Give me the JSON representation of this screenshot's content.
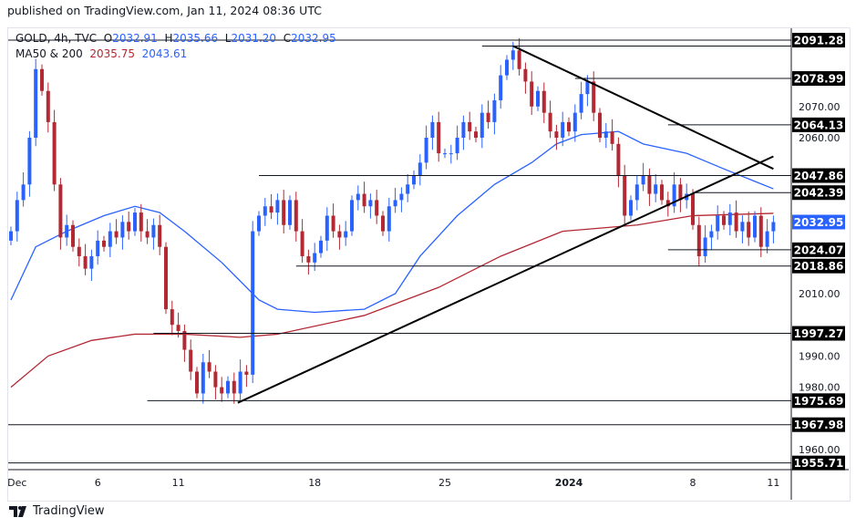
{
  "header": {
    "published": "published on TradingView.com, Jan 11, 2024 08:36 UTC"
  },
  "legend": {
    "symbol": "GOLD, 4h, TVC",
    "o_label": "O",
    "o": "2032.91",
    "h_label": "H",
    "h": "2035.66",
    "l_label": "L",
    "l": "2031.20",
    "c_label": "C",
    "c": "2032.95",
    "ma_label": "MA50 & 200",
    "ma200": "2035.75",
    "ma50": "2043.61"
  },
  "footer": {
    "brand": "TradingView"
  },
  "colors": {
    "up": "#2962ff",
    "down": "#b22833",
    "ma50": "#2962ff",
    "ma200": "#b22833",
    "label_bg": "#000000",
    "last_price_bg": "#2962ff"
  },
  "chart_data": {
    "type": "candlestick",
    "title": "GOLD, 4h, TVC",
    "ylim": [
      1953,
      2097
    ],
    "y_ticks": [
      "2070.00",
      "2060.00",
      "2010.00",
      "1990.00",
      "1980.00",
      "1960.00"
    ],
    "x_ticks": [
      {
        "label": "Dec",
        "i": 1
      },
      {
        "label": "6",
        "i": 14
      },
      {
        "label": "11",
        "i": 27
      },
      {
        "label": "18",
        "i": 49
      },
      {
        "label": "25",
        "i": 70
      },
      {
        "label": "2024",
        "i": 90
      },
      {
        "label": "8",
        "i": 110
      },
      {
        "label": "11",
        "i": 123
      }
    ],
    "closes": [
      2030,
      2040,
      2045,
      2060,
      2082,
      2075,
      2065,
      2045,
      2028,
      2032,
      2025,
      2022,
      2018,
      2022,
      2027,
      2025,
      2030,
      2028,
      2033,
      2030,
      2036,
      2030,
      2028,
      2032,
      2025,
      2005,
      2000,
      1998,
      1992,
      1985,
      1978,
      1988,
      1985,
      1980,
      1978,
      1982,
      1978,
      1985,
      1984,
      2030,
      2035,
      2038,
      2036,
      2040,
      2032,
      2040,
      2030,
      2022,
      2020,
      2023,
      2027,
      2035,
      2030,
      2028,
      2030,
      2040,
      2042,
      2038,
      2040,
      2035,
      2030,
      2038,
      2040,
      2042,
      2045,
      2048,
      2052,
      2060,
      2065,
      2055,
      2055,
      2055,
      2060,
      2065,
      2062,
      2060,
      2068,
      2065,
      2072,
      2080,
      2085,
      2088,
      2082,
      2078,
      2070,
      2075,
      2068,
      2062,
      2060,
      2065,
      2062,
      2068,
      2074,
      2078,
      2068,
      2060,
      2062,
      2058,
      2048,
      2035,
      2040,
      2045,
      2048,
      2042,
      2045,
      2040,
      2038,
      2045,
      2040,
      2042,
      2032,
      2022,
      2028,
      2030,
      2035,
      2032,
      2036,
      2030,
      2033,
      2028,
      2035,
      2025,
      2030,
      2032.95
    ],
    "ma50": [
      [
        0,
        2008
      ],
      [
        4,
        2025
      ],
      [
        9,
        2030
      ],
      [
        15,
        2035
      ],
      [
        20,
        2038
      ],
      [
        24,
        2036
      ],
      [
        28,
        2030
      ],
      [
        34,
        2020
      ],
      [
        40,
        2008
      ],
      [
        43,
        2005
      ],
      [
        49,
        2004
      ],
      [
        57,
        2005
      ],
      [
        62,
        2010
      ],
      [
        66,
        2022
      ],
      [
        72,
        2035
      ],
      [
        78,
        2045
      ],
      [
        84,
        2052
      ],
      [
        88,
        2058
      ],
      [
        92,
        2061
      ],
      [
        98,
        2062
      ],
      [
        102,
        2058
      ],
      [
        109,
        2055
      ],
      [
        115,
        2050
      ],
      [
        120,
        2046
      ],
      [
        123,
        2043.61
      ]
    ],
    "ma200": [
      [
        0,
        1980
      ],
      [
        6,
        1990
      ],
      [
        13,
        1995
      ],
      [
        20,
        1997
      ],
      [
        28,
        1997
      ],
      [
        37,
        1996
      ],
      [
        43,
        1997
      ],
      [
        57,
        2003
      ],
      [
        69,
        2012
      ],
      [
        79,
        2022
      ],
      [
        89,
        2030
      ],
      [
        101,
        2032
      ],
      [
        110,
        2035
      ],
      [
        123,
        2035.75
      ]
    ],
    "trendlines": [
      {
        "from": [
          36.6,
          1975
        ],
        "to": [
          123,
          2054
        ]
      },
      {
        "from": [
          81,
          2089.4
        ],
        "to": [
          123,
          2050
        ]
      }
    ],
    "levels": [
      {
        "price": "2091.28",
        "from": -2
      },
      {
        "price": "2089.38",
        "from": 76
      },
      {
        "price": "2078.99",
        "from": 91
      },
      {
        "price": "2064.13",
        "from": 106
      },
      {
        "price": "2047.86",
        "from": 40
      },
      {
        "price": "2042.39",
        "from": 110
      },
      {
        "price": "2024.07",
        "from": 106
      },
      {
        "price": "2018.86",
        "from": 46
      },
      {
        "price": "1997.27",
        "from": 23
      },
      {
        "price": "1975.69",
        "from": 22
      },
      {
        "price": "1967.98",
        "from": -2
      },
      {
        "price": "1955.71",
        "from": -2
      }
    ],
    "last_price": "2032.95"
  }
}
